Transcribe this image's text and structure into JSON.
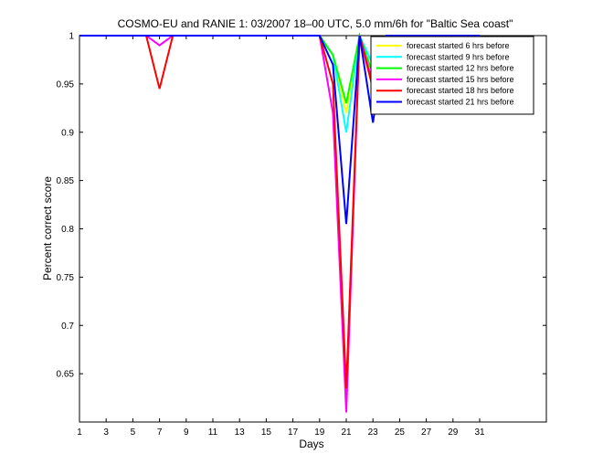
{
  "chart_data": {
    "type": "line",
    "title": "COSMO-EU and RANIE 1: 03/2007 18–00 UTC, 5.0 mm/6h for \"Baltic Sea coast\"",
    "xlabel": "Days",
    "ylabel": "Percent correct score",
    "xlim": [
      1,
      36
    ],
    "ylim": [
      0.6,
      1.0
    ],
    "xticks": [
      "1",
      "3",
      "5",
      "7",
      "9",
      "11",
      "13",
      "15",
      "17",
      "19",
      "21",
      "23",
      "25",
      "27",
      "29",
      "31"
    ],
    "yticks": [
      "0.65",
      "0.7",
      "0.75",
      "0.8",
      "0.85",
      "0.9",
      "0.95",
      "1"
    ],
    "x": [
      1,
      2,
      3,
      4,
      5,
      6,
      7,
      8,
      9,
      10,
      11,
      12,
      13,
      14,
      15,
      16,
      17,
      18,
      19,
      20,
      21,
      22,
      23,
      24,
      25,
      26,
      27,
      28,
      29,
      30,
      31
    ],
    "legend_position": "top-right",
    "series": [
      {
        "name": "forecast started 6 hrs before",
        "color": "#ffff00",
        "values": [
          1,
          1,
          1,
          1,
          1,
          1,
          1,
          1,
          1,
          1,
          1,
          1,
          1,
          1,
          1,
          1,
          1,
          1,
          1,
          0.98,
          0.92,
          1,
          0.96,
          1,
          1,
          1,
          1,
          1,
          1,
          1,
          1
        ]
      },
      {
        "name": "forecast started 9 hrs before",
        "color": "#00ffff",
        "values": [
          1,
          1,
          1,
          1,
          1,
          1,
          1,
          1,
          1,
          1,
          1,
          1,
          1,
          1,
          1,
          1,
          1,
          1,
          1,
          0.98,
          0.9,
          1,
          0.97,
          1,
          1,
          1,
          1,
          1,
          1,
          1,
          1
        ]
      },
      {
        "name": "forecast started 12 hrs before",
        "color": "#00ff00",
        "values": [
          1,
          1,
          1,
          1,
          1,
          1,
          1,
          1,
          1,
          1,
          1,
          1,
          1,
          1,
          1,
          1,
          1,
          1,
          1,
          0.98,
          0.93,
          1,
          0.96,
          1,
          1,
          1,
          1,
          1,
          1,
          1,
          1
        ]
      },
      {
        "name": "forecast started 15 hrs before",
        "color": "#ff00ff",
        "values": [
          1,
          1,
          1,
          1,
          1,
          1,
          0.99,
          1,
          1,
          1,
          1,
          1,
          1,
          1,
          1,
          1,
          1,
          1,
          1,
          0.92,
          0.61,
          1,
          0.95,
          1,
          1,
          1,
          1,
          1,
          1,
          1,
          1
        ]
      },
      {
        "name": "forecast started 18 hrs before",
        "color": "#ff0000",
        "values": [
          1,
          1,
          1,
          1,
          1,
          1,
          0.945,
          1,
          1,
          1,
          1,
          1,
          1,
          1,
          1,
          1,
          1,
          1,
          1,
          0.95,
          0.635,
          1,
          0.945,
          1,
          1,
          1,
          1,
          1,
          1,
          1,
          1
        ]
      },
      {
        "name": "forecast started 21 hrs before",
        "color": "#0000ff",
        "values": [
          1,
          1,
          1,
          1,
          1,
          1,
          1,
          1,
          1,
          1,
          1,
          1,
          1,
          1,
          1,
          1,
          1,
          1,
          1,
          0.97,
          0.805,
          1,
          0.91,
          1,
          1,
          1,
          1,
          1,
          1,
          1,
          1
        ]
      }
    ]
  }
}
